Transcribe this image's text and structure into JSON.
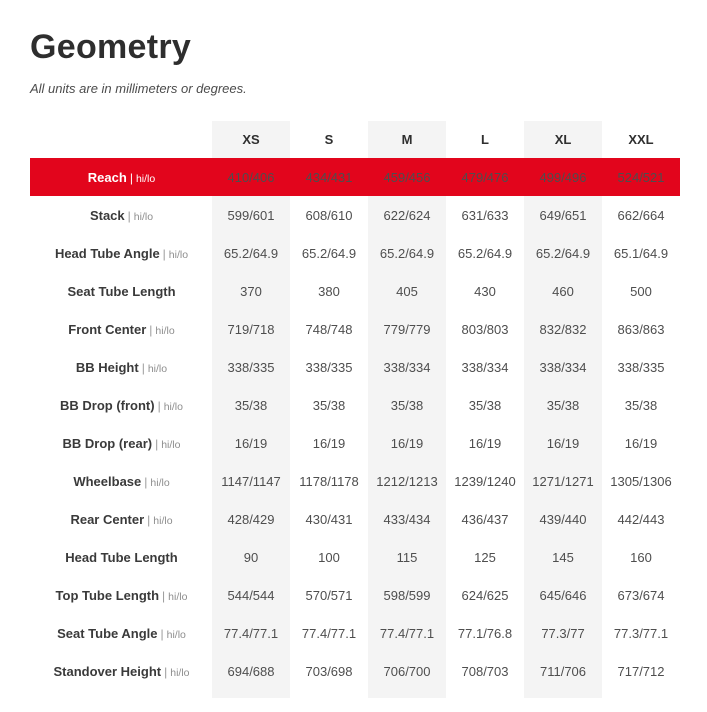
{
  "colors": {
    "highlight_red": "#e2051c",
    "stripe_gray": "#f4f4f4",
    "text_dark": "#3a3a3a"
  },
  "chart_data": {
    "type": "table",
    "title": "Geometry",
    "note": "All units are in millimeters or degrees.",
    "separator": "|",
    "columns": [
      "XS",
      "S",
      "M",
      "L",
      "XL",
      "XXL"
    ],
    "striped_columns": [
      0,
      2,
      4
    ],
    "rows": [
      {
        "label": "Reach",
        "suffix": "hi/lo",
        "highlight": true,
        "values": [
          "410/406",
          "434/431",
          "459/456",
          "479/476",
          "499/496",
          "524/521"
        ]
      },
      {
        "label": "Stack",
        "suffix": "hi/lo",
        "highlight": false,
        "values": [
          "599/601",
          "608/610",
          "622/624",
          "631/633",
          "649/651",
          "662/664"
        ]
      },
      {
        "label": "Head Tube Angle",
        "suffix": "hi/lo",
        "highlight": false,
        "values": [
          "65.2/64.9",
          "65.2/64.9",
          "65.2/64.9",
          "65.2/64.9",
          "65.2/64.9",
          "65.1/64.9"
        ]
      },
      {
        "label": "Seat Tube Length",
        "suffix": "",
        "highlight": false,
        "values": [
          "370",
          "380",
          "405",
          "430",
          "460",
          "500"
        ]
      },
      {
        "label": "Front Center",
        "suffix": "hi/lo",
        "highlight": false,
        "values": [
          "719/718",
          "748/748",
          "779/779",
          "803/803",
          "832/832",
          "863/863"
        ]
      },
      {
        "label": "BB Height",
        "suffix": "hi/lo",
        "highlight": false,
        "values": [
          "338/335",
          "338/335",
          "338/334",
          "338/334",
          "338/334",
          "338/335"
        ]
      },
      {
        "label": "BB Drop (front)",
        "suffix": "hi/lo",
        "highlight": false,
        "values": [
          "35/38",
          "35/38",
          "35/38",
          "35/38",
          "35/38",
          "35/38"
        ]
      },
      {
        "label": "BB Drop (rear)",
        "suffix": "hi/lo",
        "highlight": false,
        "values": [
          "16/19",
          "16/19",
          "16/19",
          "16/19",
          "16/19",
          "16/19"
        ]
      },
      {
        "label": "Wheelbase",
        "suffix": "hi/lo",
        "highlight": false,
        "values": [
          "1147/1147",
          "1178/1178",
          "1212/1213",
          "1239/1240",
          "1271/1271",
          "1305/1306"
        ]
      },
      {
        "label": "Rear Center",
        "suffix": "hi/lo",
        "highlight": false,
        "values": [
          "428/429",
          "430/431",
          "433/434",
          "436/437",
          "439/440",
          "442/443"
        ]
      },
      {
        "label": "Head Tube Length",
        "suffix": "",
        "highlight": false,
        "values": [
          "90",
          "100",
          "115",
          "125",
          "145",
          "160"
        ]
      },
      {
        "label": "Top Tube Length",
        "suffix": "hi/lo",
        "highlight": false,
        "values": [
          "544/544",
          "570/571",
          "598/599",
          "624/625",
          "645/646",
          "673/674"
        ]
      },
      {
        "label": "Seat Tube Angle",
        "suffix": "hi/lo",
        "highlight": false,
        "values": [
          "77.4/77.1",
          "77.4/77.1",
          "77.4/77.1",
          "77.1/76.8",
          "77.3/77",
          "77.3/77.1"
        ]
      },
      {
        "label": "Standover Height",
        "suffix": "hi/lo",
        "highlight": false,
        "values": [
          "694/688",
          "703/698",
          "706/700",
          "708/703",
          "711/706",
          "717/712"
        ]
      }
    ]
  }
}
